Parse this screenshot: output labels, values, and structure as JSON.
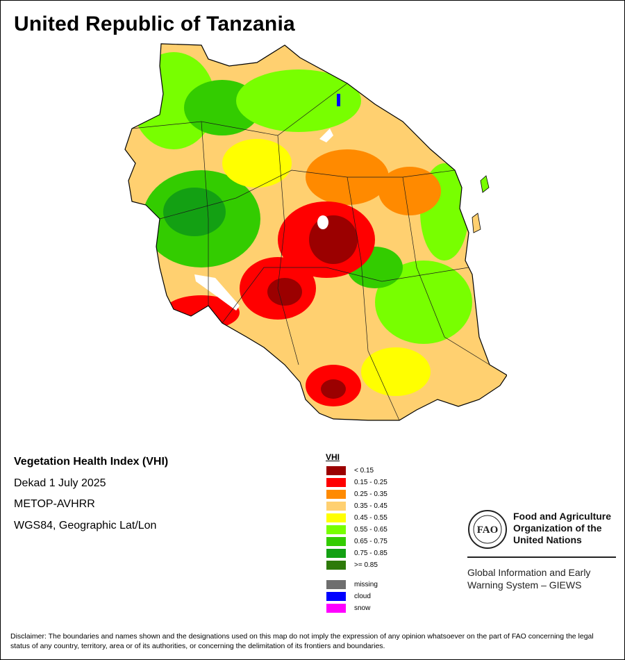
{
  "title": "United Republic of Tanzania",
  "info": {
    "product": "Vegetation Health Index (VHI)",
    "period": "Dekad 1 July 2025",
    "sensor": "METOP-AVHRR",
    "projection": "WGS84, Geographic Lat/Lon"
  },
  "legend": {
    "title": "VHI",
    "classes": [
      {
        "label": "< 0.15",
        "color": "#9b0000"
      },
      {
        "label": "0.15 - 0.25",
        "color": "#ff0000"
      },
      {
        "label": "0.25 - 0.35",
        "color": "#ff8a00"
      },
      {
        "label": "0.35 - 0.45",
        "color": "#ffd070"
      },
      {
        "label": "0.45 - 0.55",
        "color": "#ffff00"
      },
      {
        "label": "0.55 - 0.65",
        "color": "#78ff00"
      },
      {
        "label": "0.65 - 0.75",
        "color": "#33cc00"
      },
      {
        "label": "0.75 - 0.85",
        "color": "#13a013"
      },
      {
        "label": ">= 0.85",
        "color": "#2d7a09"
      }
    ],
    "special": [
      {
        "label": "missing",
        "color": "#6e6e6e"
      },
      {
        "label": "cloud",
        "color": "#0000ff"
      },
      {
        "label": "snow",
        "color": "#ff00ff"
      }
    ]
  },
  "organization": {
    "logo_text": "FAO",
    "name_lines": [
      "Food and Agriculture",
      "Organization of the",
      "United Nations"
    ],
    "system_lines": [
      "Global Information and Early",
      "Warning System – GIEWS"
    ]
  },
  "disclaimer": "Disclaimer: The boundaries and names shown and the designations used on this map do not imply the expression of any opinion whatsoever on the part of FAO concerning the legal status of any country, territory, area or of its authorities, or concerning the delimitation of its frontiers and boundaries."
}
